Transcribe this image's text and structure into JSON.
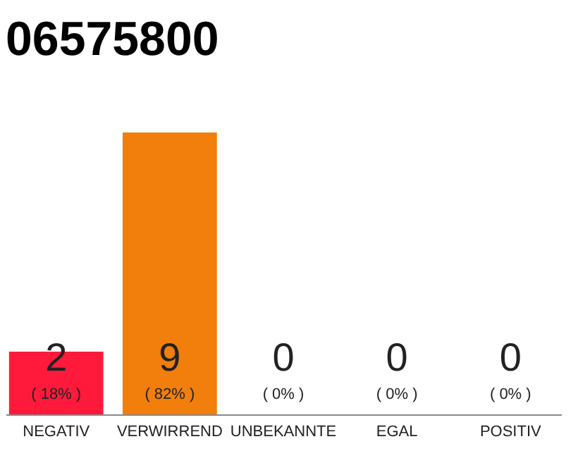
{
  "chart_data": {
    "type": "bar",
    "title": "06575800",
    "categories": [
      "NEGATIV",
      "VERWIRREND",
      "UNBEKANNTE",
      "EGAL",
      "POSITIV"
    ],
    "values": [
      2,
      9,
      0,
      0,
      0
    ],
    "colors": [
      "#ff1a3c",
      "#f27e0c",
      "#ff1a3c",
      "#ff1a3c",
      "#ff1a3c"
    ],
    "data_labels": true,
    "annotations": [
      "( 18% )",
      "( 82% )",
      "( 0% )",
      "( 0% )",
      "( 0% )"
    ]
  }
}
